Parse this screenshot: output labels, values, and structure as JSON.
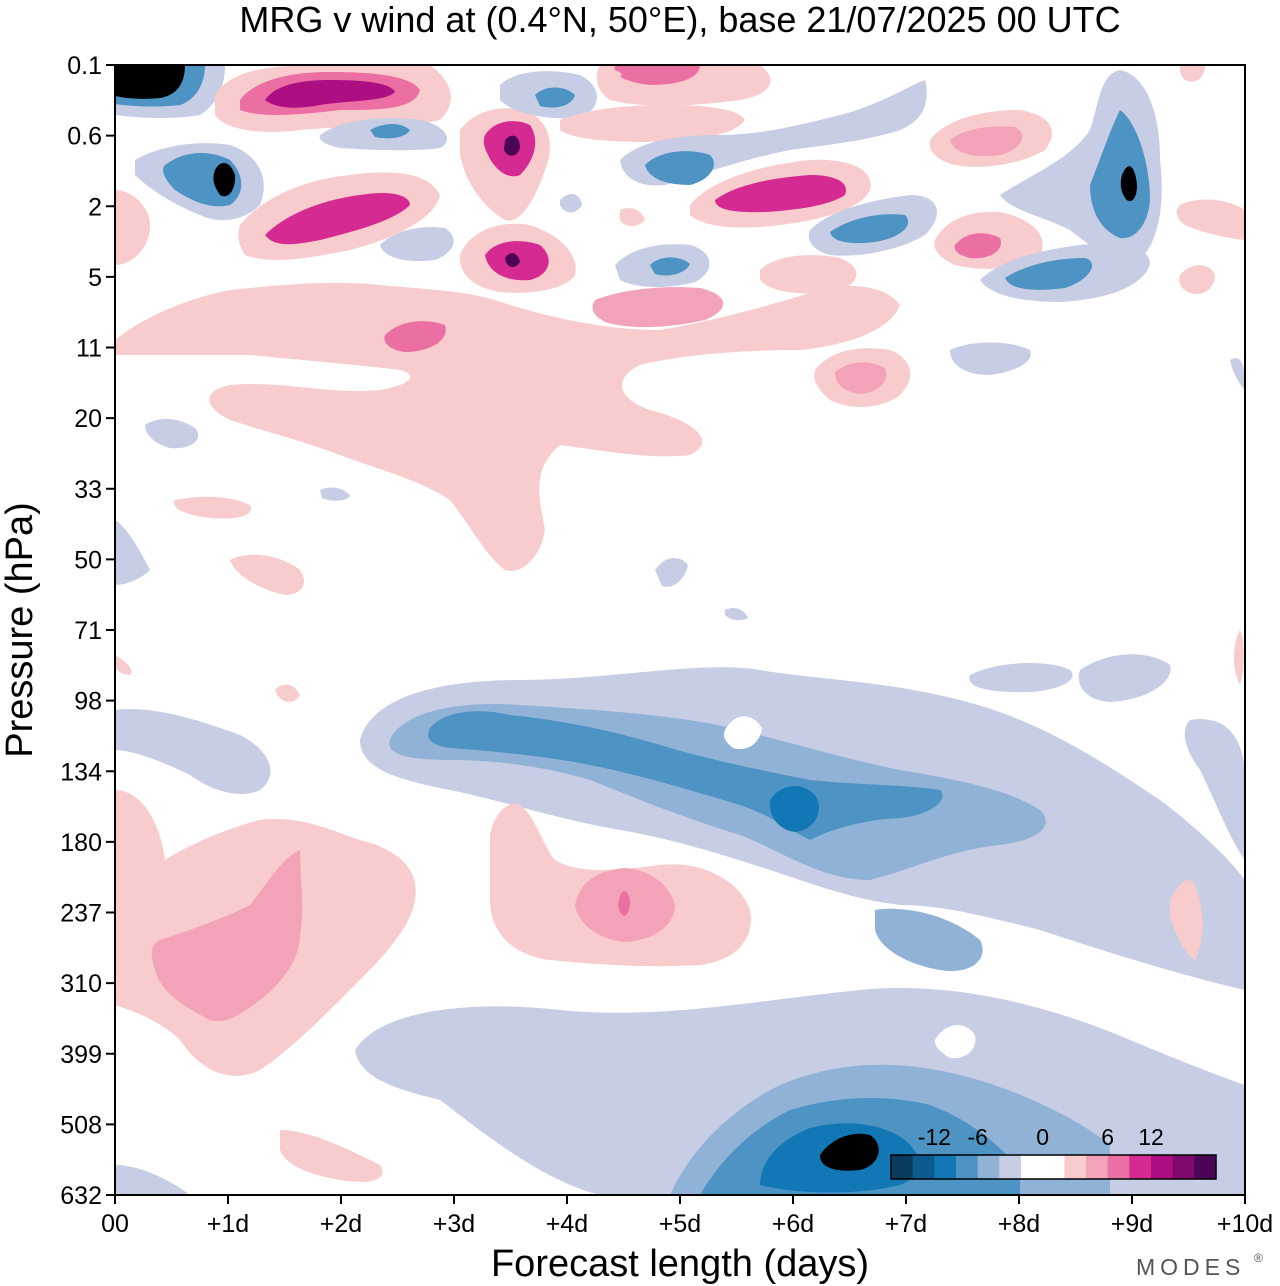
{
  "chart_data": {
    "type": "heatmap",
    "title": "MRG v wind at (0.4°N, 50°E),  base 21/07/2025  00 UTC",
    "xlabel": "Forecast length (days)",
    "ylabel": "Pressure (hPa)",
    "x_ticks": [
      "00",
      "+1d",
      "+2d",
      "+3d",
      "+4d",
      "+5d",
      "+6d",
      "+7d",
      "+8d",
      "+9d",
      "+10d"
    ],
    "y_ticks": [
      "0.1",
      "0.6",
      "2",
      "5",
      "11",
      "20",
      "33",
      "50",
      "71",
      "98",
      "134",
      "180",
      "237",
      "310",
      "399",
      "508",
      "632"
    ],
    "xlim": [
      0,
      10
    ],
    "ylim": [
      "0.1",
      "632"
    ],
    "legend": {
      "placement": "bottom-right",
      "labels": [
        "-12",
        "-6",
        "0",
        "6",
        "12"
      ],
      "colors": [
        "#0b3c5d",
        "#0d5a8f",
        "#1277b5",
        "#4d93c3",
        "#90b2d7",
        "#c7cde4",
        "#ffffff",
        "#ffffff",
        "#f8cccd",
        "#f3a3b8",
        "#ec6fa4",
        "#d52a91",
        "#ad0f82",
        "#80096e",
        "#4b0456"
      ]
    },
    "contour_colors": {
      "neg_strong": "#0b3c5d",
      "neg_3": "#1277b5",
      "neg_2": "#4d93c3",
      "neg_1": "#90b2d7",
      "neg_0": "#c7cde4",
      "pos_0": "#f8cccd",
      "pos_1": "#f3a3b8",
      "pos_2": "#ec6fa4",
      "pos_3": "#d52a91",
      "pos_4": "#ad0f82",
      "pos_strong": "#4b0456"
    },
    "regions": [
      {
        "series": "neg_0",
        "day": 1.1,
        "level": "134",
        "sign": -1,
        "magnitude": 3
      },
      {
        "series": "pos_0",
        "day": 1.0,
        "level": "310",
        "sign": 1,
        "magnitude": 6
      },
      {
        "series": "pos_0",
        "day": 4.5,
        "level": "237",
        "sign": 1,
        "magnitude": 6
      },
      {
        "series": "neg_2",
        "day": 6.0,
        "level": "134",
        "sign": -1,
        "magnitude": 9
      },
      {
        "series": "neg_3",
        "day": 6.6,
        "level": "560",
        "sign": -1,
        "magnitude": 12
      },
      {
        "series": "neg_4",
        "day": 0.5,
        "level": "0.2",
        "sign": -1,
        "magnitude": 15
      },
      {
        "series": "pos_4",
        "day": 1.6,
        "level": "0.3",
        "sign": 1,
        "magnitude": 15
      },
      {
        "series": "neg_3",
        "day": 1.0,
        "level": "1.5",
        "sign": -1,
        "magnitude": 15
      },
      {
        "series": "pos_4",
        "day": 2.4,
        "level": "2",
        "sign": 1,
        "magnitude": 12
      },
      {
        "series": "pos_4",
        "day": 3.5,
        "level": "0.8",
        "sign": 1,
        "magnitude": 15
      },
      {
        "series": "pos_3",
        "day": 3.5,
        "level": "5",
        "sign": 1,
        "magnitude": 12
      },
      {
        "series": "neg_3",
        "day": 5.0,
        "level": "1.3",
        "sign": -1,
        "magnitude": 12
      },
      {
        "series": "pos_3",
        "day": 5.8,
        "level": "2",
        "sign": 1,
        "magnitude": 12
      },
      {
        "series": "neg_3",
        "day": 6.7,
        "level": "3.5",
        "sign": -1,
        "magnitude": 12
      },
      {
        "series": "neg_3",
        "day": 8.9,
        "level": "1.8",
        "sign": -1,
        "magnitude": 15
      },
      {
        "series": "pos_2",
        "day": 3.0,
        "level": "9",
        "sign": 1,
        "magnitude": 9
      },
      {
        "series": "pos_1",
        "day": 6.6,
        "level": "15",
        "sign": 1,
        "magnitude": 6
      }
    ]
  },
  "brand": "MODES",
  "brand_mark": "®"
}
